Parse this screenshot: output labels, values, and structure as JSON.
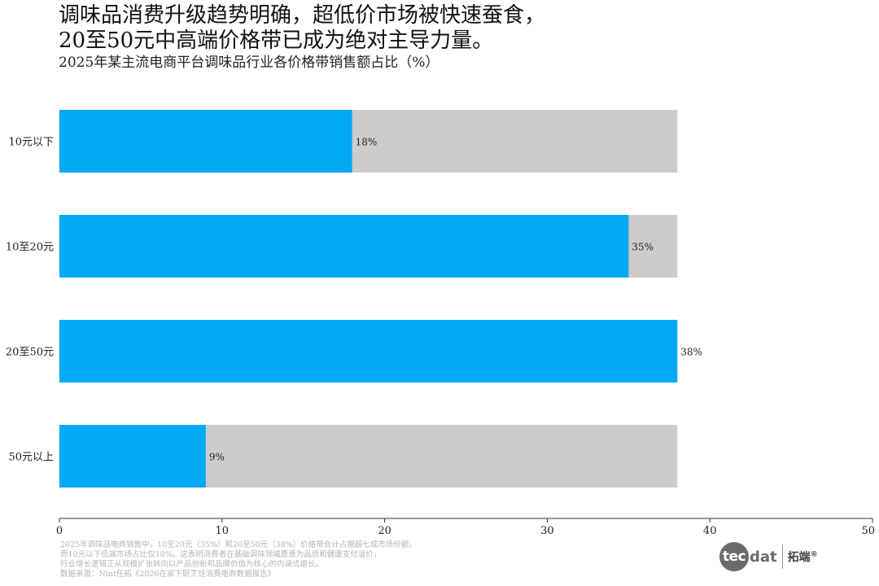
{
  "title_lines": [
    "调味品消费升级趋势明确，超低价市场被快速蚕食，",
    "20至50元中高端价格带已成为绝对主导力量。"
  ],
  "subtitle": "2025年某主流电商平台调味品行业各价格带销售额占比（%）",
  "chart_data": {
    "type": "bar",
    "orientation": "horizontal",
    "categories": [
      "10元以下",
      "10至20元",
      "20至50元",
      "50元以上"
    ],
    "values": [
      18,
      35,
      38,
      9
    ],
    "value_labels": [
      "18%",
      "35%",
      "38%",
      "9%"
    ],
    "background_value": 38,
    "xlim": [
      0,
      50
    ],
    "xticks": [
      0,
      10,
      20,
      30,
      40,
      50
    ],
    "xtick_labels": [
      "0",
      "10",
      "20",
      "30",
      "40",
      "50"
    ],
    "bar_color": "#03a9f4",
    "background_color": "#cccccc",
    "grid": false
  },
  "footnote_lines": [
    "2025年调味品电商销售中，10至20元（35%）和20至50元（38%）价格带合计占据超七成市场份额，",
    "而10元以下低端市场占比仅18%。这表明消费者在基础调味领域愿意为品质和健康支付溢价，",
    "行业增长逻辑正从规模扩张转向以产品创新和品牌价值为核心的内涵式增长。",
    "数据来源：Nint任拓《2026在家下厨烹饪消费电商数据报告》"
  ],
  "logo": {
    "circle_text": "tec",
    "rest_text": "dat",
    "cn_text": "拓端",
    "reg_mark": "®"
  }
}
